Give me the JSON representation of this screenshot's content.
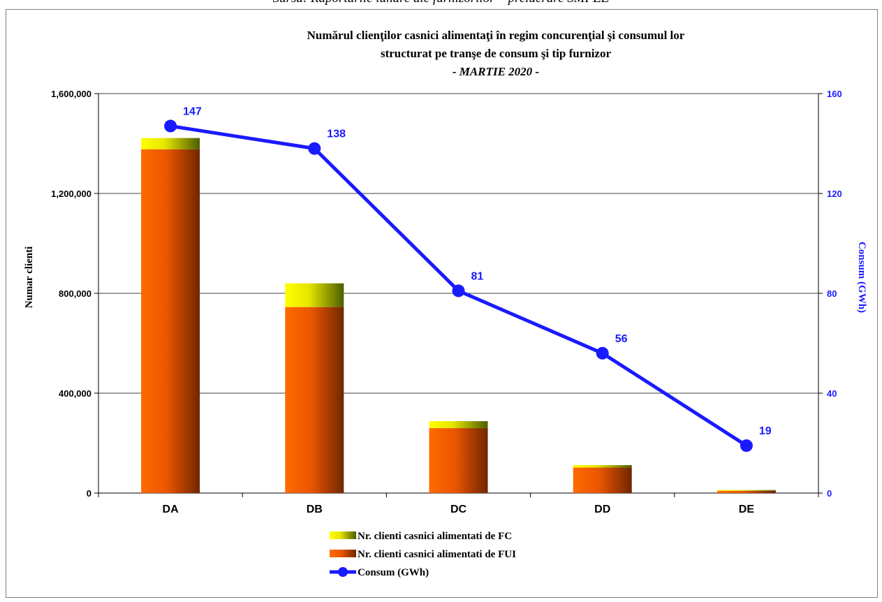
{
  "caption": "Sursa: Raportările lunare ale furnizorilor – prelucrare SMPEE",
  "chart_data": {
    "type": "bar",
    "title": "Numărul clienţilor casnici alimentaţi în regim concurenţial şi consumul lor",
    "title_line2": "structurat pe tranşe de consum şi tip furnizor",
    "subtitle": "- MARTIE 2020 -",
    "categories": [
      "DA",
      "DB",
      "DC",
      "DD",
      "DE"
    ],
    "ylabel": "Numar clienti",
    "ylabel_right": "Consum (GWh)",
    "ylim": [
      0,
      1600000
    ],
    "ylim_right": [
      0,
      160
    ],
    "yticks": [
      "0",
      "400,000",
      "800,000",
      "1,200,000",
      "1,600,000"
    ],
    "yticks_right": [
      "0",
      "40",
      "80",
      "120",
      "160"
    ],
    "grid": true,
    "legend_position": "bottom",
    "series": [
      {
        "name": "Nr. clienti casnici alimentati de FUI",
        "kind": "bar",
        "stack": "clients",
        "values": [
          1377000,
          745000,
          260000,
          102000,
          9000
        ],
        "color_light": "#ff6600",
        "color_dark": "#7a2a00"
      },
      {
        "name": "Nr. clienti casnici alimentati de FC",
        "kind": "bar",
        "stack": "clients",
        "values": [
          45000,
          95000,
          28000,
          10000,
          3000
        ],
        "color_light": "#ffff00",
        "color_dark": "#556b00"
      },
      {
        "name": "Consum (GWh)",
        "kind": "line",
        "axis": "right",
        "values": [
          147,
          138,
          81,
          56,
          19
        ],
        "labels": [
          "147",
          "138",
          "81",
          "56",
          "19"
        ],
        "color": "#1a1aff"
      }
    ]
  }
}
